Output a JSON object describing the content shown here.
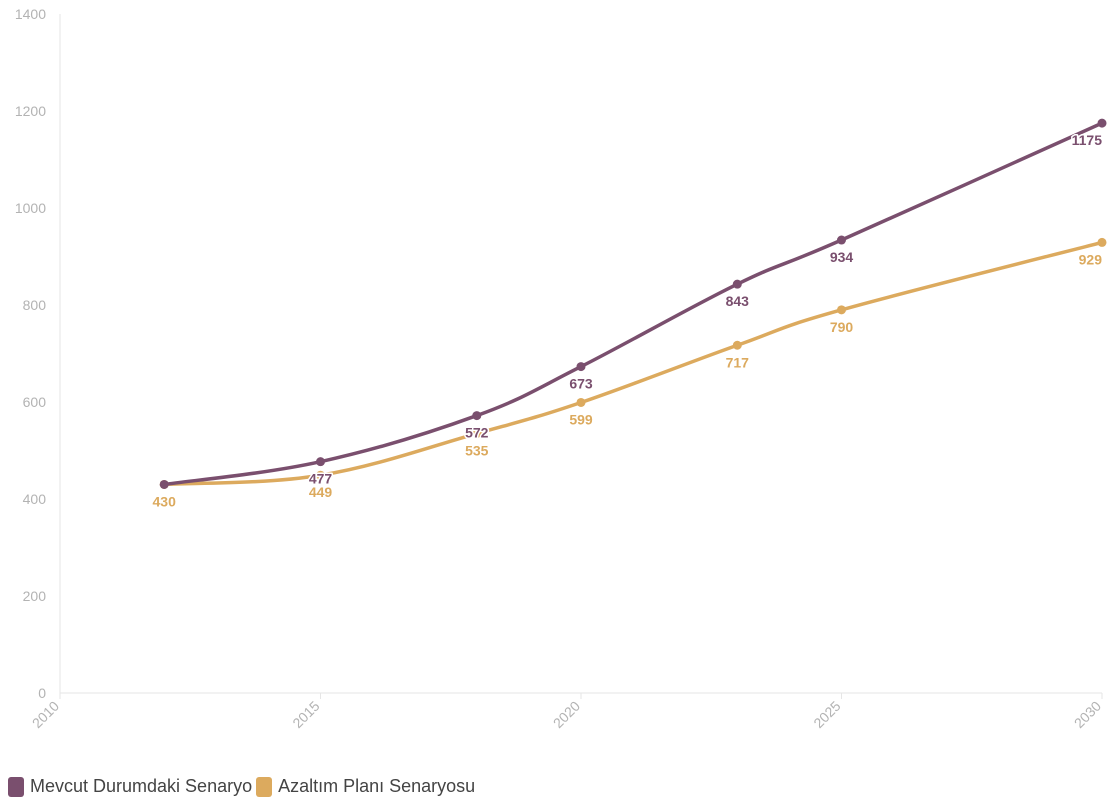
{
  "chart_data": {
    "type": "line",
    "title": "",
    "xlabel": "",
    "ylabel": "",
    "xlim": [
      2010,
      2030
    ],
    "ylim": [
      0,
      1400
    ],
    "x_ticks": [
      "2010",
      "2015",
      "2020",
      "2025",
      "2030"
    ],
    "y_ticks": [
      "0",
      "200",
      "400",
      "600",
      "800",
      "1000",
      "1200",
      "1400"
    ],
    "grid": false,
    "legend_position": "bottom-left",
    "series": [
      {
        "name": "Mevcut Durumdaki Senaryo",
        "color": "#7a4f6e",
        "x": [
          2012,
          2015,
          2018,
          2020,
          2023,
          2025,
          2030
        ],
        "values": [
          430,
          477,
          572,
          673,
          843,
          934,
          1175
        ],
        "labels": [
          "",
          "477",
          "572",
          "673",
          "843",
          "934",
          "1175"
        ]
      },
      {
        "name": "Azaltım Planı Senaryosu",
        "color": "#dcaa5e",
        "x": [
          2012,
          2015,
          2018,
          2020,
          2023,
          2025,
          2030
        ],
        "values": [
          430,
          449,
          535,
          599,
          717,
          790,
          929
        ],
        "labels": [
          "430",
          "449",
          "535",
          "599",
          "717",
          "790",
          "929"
        ]
      }
    ]
  }
}
